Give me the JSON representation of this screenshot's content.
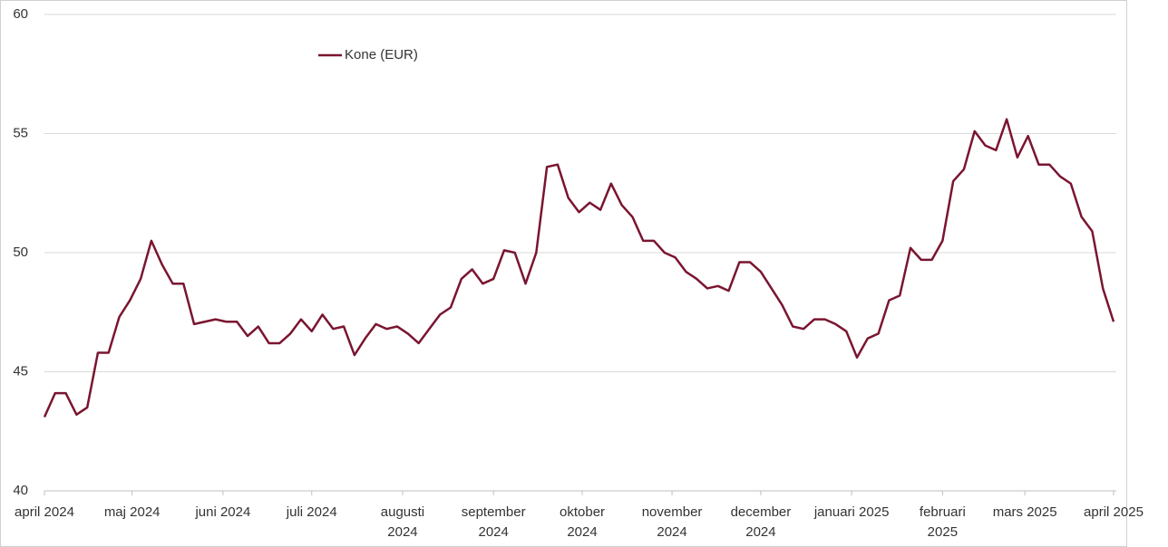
{
  "chart_data": {
    "type": "line",
    "series": [
      {
        "name": "Kone (EUR)",
        "color": "#7a1530",
        "values": [
          43.1,
          44.1,
          44.1,
          43.2,
          43.5,
          45.8,
          45.8,
          47.3,
          48.0,
          48.9,
          50.5,
          49.5,
          48.7,
          48.7,
          47.0,
          47.1,
          47.2,
          47.1,
          47.1,
          46.5,
          46.9,
          46.2,
          46.2,
          46.6,
          47.2,
          46.7,
          47.4,
          46.8,
          46.9,
          45.7,
          46.4,
          47.0,
          46.8,
          46.9,
          46.6,
          46.2,
          46.8,
          47.4,
          47.7,
          48.9,
          49.3,
          48.7,
          48.9,
          50.1,
          50.0,
          48.7,
          50.0,
          53.6,
          53.7,
          52.3,
          51.7,
          52.1,
          51.8,
          52.9,
          52.0,
          51.5,
          50.5,
          50.5,
          50.0,
          49.8,
          49.2,
          48.9,
          48.5,
          48.6,
          48.4,
          49.6,
          49.6,
          49.2,
          48.5,
          47.8,
          46.9,
          46.8,
          47.2,
          47.2,
          47.0,
          46.7,
          45.6,
          46.4,
          46.6,
          48.0,
          48.2,
          50.2,
          49.7,
          49.7,
          50.5,
          53.0,
          53.5,
          55.1,
          54.5,
          54.3,
          55.6,
          54.0,
          54.9,
          53.7,
          53.7,
          53.2,
          52.9,
          51.5,
          50.9,
          48.5,
          47.1
        ]
      }
    ],
    "xlim": [
      0,
      100
    ],
    "xticks": [
      {
        "value": 0,
        "label": "april 2024"
      },
      {
        "value": 8.2,
        "label": "maj 2024"
      },
      {
        "value": 16.7,
        "label": "juni 2024"
      },
      {
        "value": 25.0,
        "label": "juli 2024"
      },
      {
        "value": 33.5,
        "label": "augusti\n2024"
      },
      {
        "value": 42.0,
        "label": "september\n2024"
      },
      {
        "value": 50.3,
        "label": "oktober\n2024"
      },
      {
        "value": 58.7,
        "label": "november\n2024"
      },
      {
        "value": 67.0,
        "label": "december\n2024"
      },
      {
        "value": 75.5,
        "label": "januari 2025"
      },
      {
        "value": 84.0,
        "label": "februari\n2025"
      },
      {
        "value": 91.7,
        "label": "mars 2025"
      },
      {
        "value": 100,
        "label": "april 2025"
      }
    ],
    "ylim": [
      40,
      60
    ],
    "yticks": [
      40,
      45,
      50,
      55,
      60
    ],
    "grid": true
  }
}
